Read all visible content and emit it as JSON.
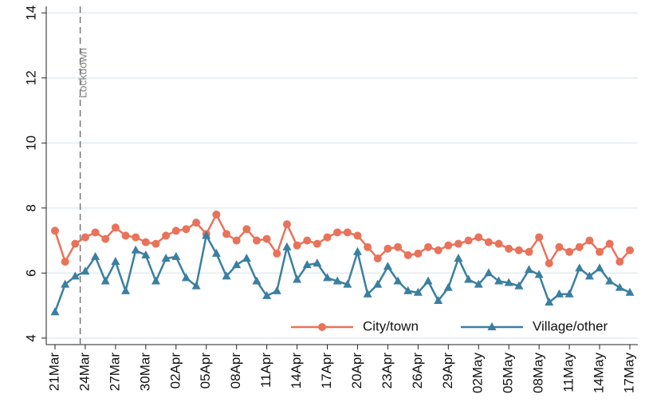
{
  "chart_data": {
    "type": "line",
    "categories": [
      "21Mar",
      null,
      null,
      "24Mar",
      null,
      null,
      "27Mar",
      null,
      null,
      "30Mar",
      null,
      null,
      "02Apr",
      null,
      null,
      "05Apr",
      null,
      null,
      "08Apr",
      null,
      null,
      "11Apr",
      null,
      null,
      "14Apr",
      null,
      null,
      "17Apr",
      null,
      null,
      "20Apr",
      null,
      null,
      "23Apr",
      null,
      null,
      "26Apr",
      null,
      null,
      "29Apr",
      null,
      null,
      "02May",
      null,
      null,
      "05May",
      null,
      null,
      "08May",
      null,
      null,
      "11May",
      null,
      null,
      "14May",
      null,
      null,
      "17May"
    ],
    "series": [
      {
        "name": "City/town",
        "color": "#e8735a",
        "marker": "circle",
        "values": [
          7.3,
          6.35,
          6.9,
          7.1,
          7.25,
          7.05,
          7.4,
          7.15,
          7.1,
          6.95,
          6.9,
          7.15,
          7.3,
          7.35,
          7.55,
          7.2,
          7.8,
          7.2,
          7.0,
          7.35,
          7.0,
          7.05,
          6.6,
          7.5,
          6.85,
          7.0,
          6.9,
          7.1,
          7.25,
          7.25,
          7.15,
          6.8,
          6.45,
          6.75,
          6.8,
          6.55,
          6.6,
          6.8,
          6.7,
          6.85,
          6.9,
          7.0,
          7.1,
          6.95,
          6.9,
          6.75,
          6.7,
          6.65,
          7.1,
          6.3,
          6.8,
          6.65,
          6.8,
          7.0,
          6.65,
          6.9,
          6.35,
          6.7
        ]
      },
      {
        "name": "Village/other",
        "color": "#3a7fa0",
        "marker": "triangle",
        "values": [
          4.8,
          5.65,
          5.9,
          6.05,
          6.5,
          5.75,
          6.35,
          5.45,
          6.7,
          6.55,
          5.75,
          6.45,
          6.5,
          5.85,
          5.6,
          7.15,
          6.6,
          5.9,
          6.25,
          6.45,
          5.75,
          5.3,
          5.45,
          6.8,
          5.8,
          6.25,
          6.3,
          5.85,
          5.75,
          5.65,
          6.65,
          5.35,
          5.65,
          6.2,
          5.75,
          5.45,
          5.4,
          5.75,
          5.15,
          5.55,
          6.45,
          5.8,
          5.65,
          6.0,
          5.75,
          5.7,
          5.6,
          6.1,
          5.95,
          5.1,
          5.35,
          5.35,
          6.15,
          5.9,
          6.15,
          5.75,
          5.55,
          5.4
        ]
      }
    ],
    "ylim": [
      3.8,
      14.2
    ],
    "yticks": [
      4,
      6,
      8,
      10,
      12,
      14
    ],
    "grid": true,
    "legend": "bottom-right",
    "annotation": {
      "text": "Lockdown",
      "x": 2.5
    }
  }
}
